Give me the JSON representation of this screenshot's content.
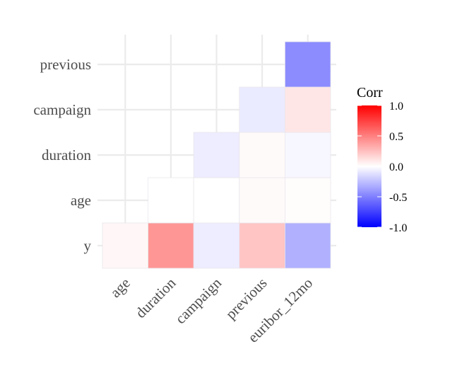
{
  "chart_data": {
    "type": "heatmap",
    "title": "",
    "xlabel": "",
    "ylabel": "",
    "x_categories": [
      "age",
      "duration",
      "campaign",
      "previous",
      "euribor_12mo"
    ],
    "y_categories": [
      "y",
      "age",
      "duration",
      "campaign",
      "previous"
    ],
    "cells": [
      {
        "x": "age",
        "y": "y",
        "value": 0.03
      },
      {
        "x": "duration",
        "y": "y",
        "value": 0.41
      },
      {
        "x": "campaign",
        "y": "y",
        "value": -0.07
      },
      {
        "x": "previous",
        "y": "y",
        "value": 0.23
      },
      {
        "x": "euribor_12mo",
        "y": "y",
        "value": -0.31
      },
      {
        "x": "duration",
        "y": "age",
        "value": 0.0
      },
      {
        "x": "campaign",
        "y": "age",
        "value": 0.0
      },
      {
        "x": "previous",
        "y": "age",
        "value": 0.02
      },
      {
        "x": "euribor_12mo",
        "y": "age",
        "value": 0.01
      },
      {
        "x": "campaign",
        "y": "duration",
        "value": -0.07
      },
      {
        "x": "previous",
        "y": "duration",
        "value": 0.02
      },
      {
        "x": "euribor_12mo",
        "y": "duration",
        "value": -0.03
      },
      {
        "x": "previous",
        "y": "campaign",
        "value": -0.08
      },
      {
        "x": "euribor_12mo",
        "y": "campaign",
        "value": 0.1
      },
      {
        "x": "euribor_12mo",
        "y": "previous",
        "value": -0.45
      }
    ],
    "legend": {
      "title": "Corr",
      "ticks": [
        "1.0",
        "0.5",
        "0.0",
        "-0.5",
        "-1.0"
      ],
      "tick_values": [
        1.0,
        0.5,
        0.0,
        -0.5,
        -1.0
      ],
      "low_color": "#0000FF",
      "mid_color": "#FFFFFF",
      "high_color": "#FF0000",
      "range": [
        -1,
        1
      ]
    },
    "grid": true,
    "legend_position": "right"
  }
}
